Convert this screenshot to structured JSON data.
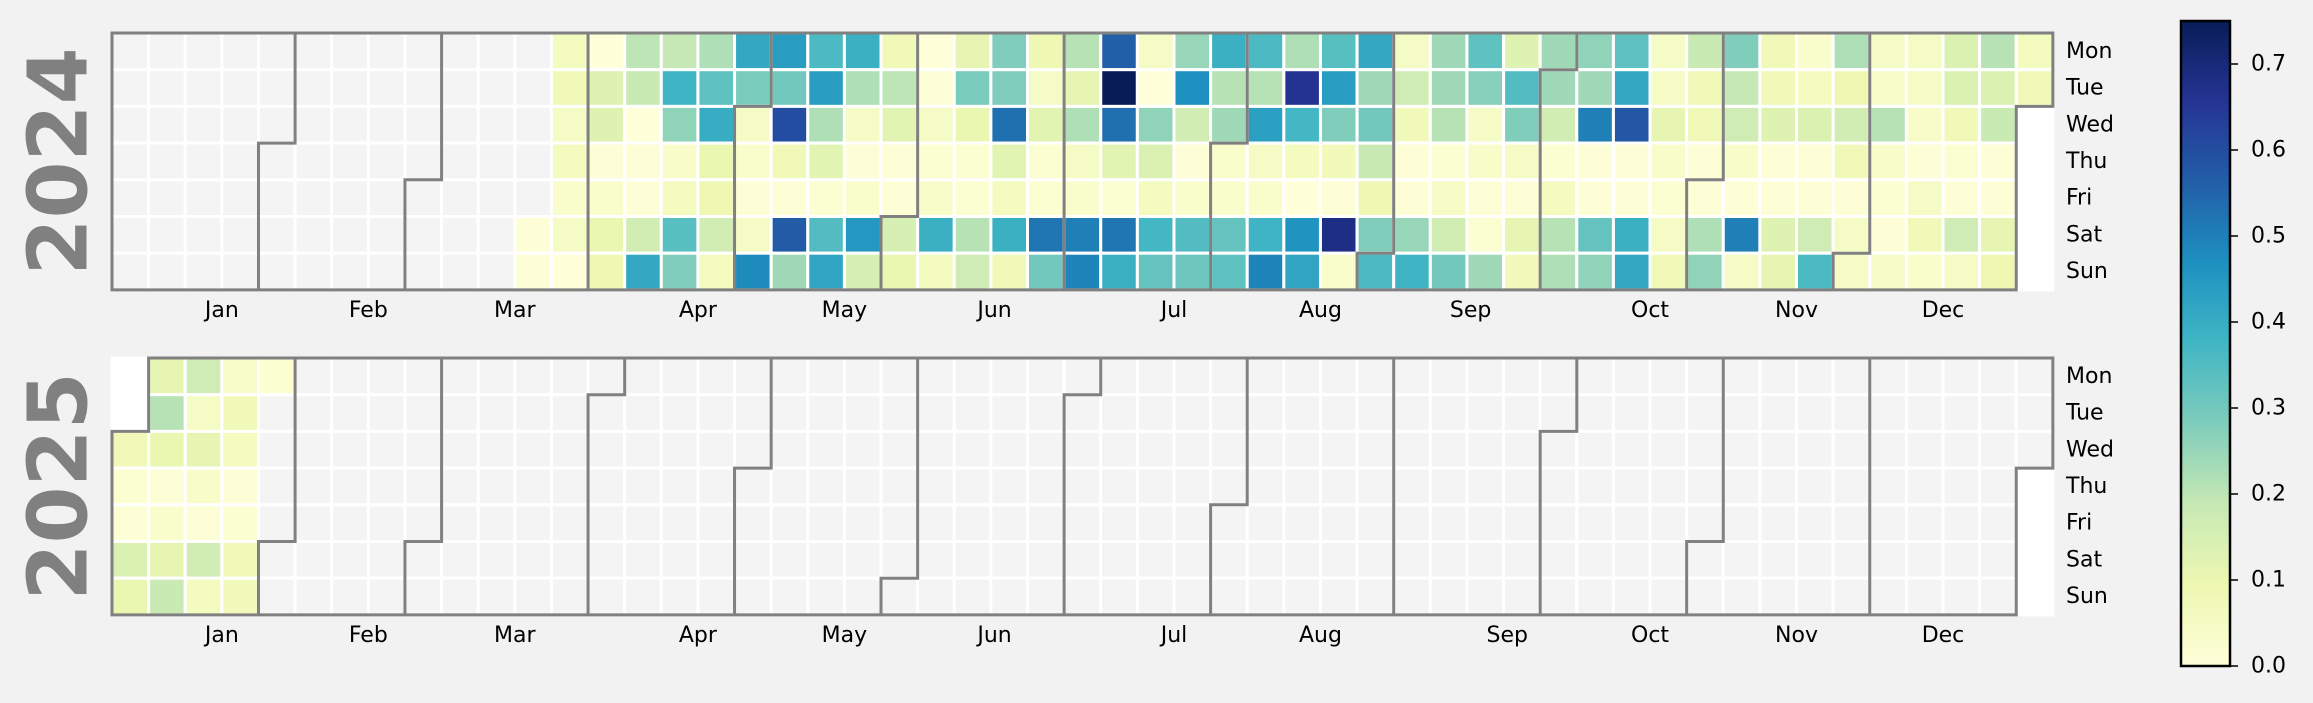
{
  "chart_data": {
    "type": "heatmap",
    "subtype": "calendar",
    "title": "",
    "colormap": "YlGnBu",
    "colormap_stops": [
      "#ffffd9",
      "#edf8b1",
      "#c7e9b4",
      "#7fcdbb",
      "#41b6c4",
      "#1d91c0",
      "#225ea8",
      "#253494",
      "#081d58"
    ],
    "vmin": 0.0,
    "vmax": 0.75,
    "empty_color": "#f4f4f4",
    "outside_color": "#ffffff",
    "outline_color": "#808080",
    "day_labels": [
      "Mon",
      "Tue",
      "Wed",
      "Thu",
      "Fri",
      "Sat",
      "Sun"
    ],
    "month_labels": [
      "Jan",
      "Feb",
      "Mar",
      "Apr",
      "May",
      "Jun",
      "Jul",
      "Aug",
      "Sep",
      "Oct",
      "Nov",
      "Dec"
    ],
    "colorbar": {
      "ticks": [
        0.0,
        0.1,
        0.2,
        0.3,
        0.4,
        0.5,
        0.6,
        0.7
      ],
      "tick_labels": [
        "0.0",
        "0.1",
        "0.2",
        "0.3",
        "0.4",
        "0.5",
        "0.6",
        "0.7"
      ]
    },
    "years": [
      {
        "year": "2024",
        "first_date": "2024-03-23",
        "daily_values": [
          0.01,
          0.01,
          0.06,
          0.08,
          0.05,
          0.06,
          0.03,
          0.05,
          0.0,
          0.0,
          0.13,
          0.13,
          0.01,
          0.03,
          0.1,
          0.09,
          0.2,
          0.18,
          0.0,
          0.01,
          0.01,
          0.16,
          0.41,
          0.19,
          0.38,
          0.26,
          0.04,
          0.06,
          0.34,
          0.28,
          0.22,
          0.33,
          0.4,
          0.1,
          0.09,
          0.16,
          0.06,
          0.41,
          0.29,
          0.05,
          0.03,
          0.01,
          0.05,
          0.48,
          0.44,
          0.3,
          0.6,
          0.08,
          0.01,
          0.57,
          0.24,
          0.36,
          0.44,
          0.22,
          0.12,
          0.02,
          0.35,
          0.42,
          0.39,
          0.22,
          0.05,
          0.01,
          0.03,
          0.45,
          0.15,
          0.08,
          0.2,
          0.12,
          0.01,
          0.01,
          0.15,
          0.1,
          0.0,
          0.01,
          0.05,
          0.02,
          0.04,
          0.39,
          0.06,
          0.11,
          0.29,
          0.1,
          0.02,
          0.02,
          0.21,
          0.17,
          0.28,
          0.28,
          0.53,
          0.12,
          0.06,
          0.39,
          0.08,
          0.09,
          0.05,
          0.12,
          0.02,
          0.02,
          0.52,
          0.3,
          0.21,
          0.11,
          0.22,
          0.05,
          0.03,
          0.5,
          0.49,
          0.56,
          0.75,
          0.53,
          0.12,
          0.02,
          0.52,
          0.39,
          0.05,
          0.0,
          0.26,
          0.14,
          0.06,
          0.37,
          0.32,
          0.25,
          0.47,
          0.16,
          0.01,
          0.03,
          0.35,
          0.31,
          0.39,
          0.21,
          0.24,
          0.03,
          0.03,
          0.32,
          0.33,
          0.36,
          0.21,
          0.43,
          0.05,
          0.03,
          0.38,
          0.49,
          0.22,
          0.66,
          0.37,
          0.06,
          0.0,
          0.46,
          0.42,
          0.34,
          0.44,
          0.28,
          0.07,
          0.01,
          0.68,
          0.03,
          0.41,
          0.24,
          0.3,
          0.18,
          0.09,
          0.28,
          0.36,
          0.05,
          0.17,
          0.07,
          0.01,
          0.01,
          0.25,
          0.38,
          0.24,
          0.24,
          0.21,
          0.02,
          0.05,
          0.16,
          0.3,
          0.33,
          0.27,
          0.05,
          0.04,
          0.01,
          0.02,
          0.24,
          0.13,
          0.35,
          0.28,
          0.05,
          0.01,
          0.11,
          0.07,
          0.24,
          0.24,
          0.16,
          0.02,
          0.06,
          0.21,
          0.22,
          0.26,
          0.24,
          0.5,
          0.01,
          0.01,
          0.32,
          0.26,
          0.33,
          0.41,
          0.58,
          0.01,
          0.01,
          0.39,
          0.41,
          0.05,
          0.05,
          0.11,
          0.04,
          0.02,
          0.05,
          0.08,
          0.18,
          0.08,
          0.08,
          0.01,
          0.01,
          0.22,
          0.26,
          0.28,
          0.19,
          0.17,
          0.04,
          0.01,
          0.5,
          0.05,
          0.08,
          0.08,
          0.13,
          0.01,
          0.01,
          0.13,
          0.11,
          0.03,
          0.06,
          0.14,
          0.01,
          0.01,
          0.17,
          0.36,
          0.22,
          0.09,
          0.16,
          0.08,
          0.01,
          0.05,
          0.05,
          0.05,
          0.04,
          0.21,
          0.04,
          0.02,
          0.01,
          0.05,
          0.05,
          0.05,
          0.04,
          0.01,
          0.05,
          0.08,
          0.03,
          0.14,
          0.14,
          0.08,
          0.02,
          0.01,
          0.17,
          0.05,
          0.21,
          0.14,
          0.18,
          0.01,
          0.01,
          0.11,
          0.09,
          0.06,
          0.08
        ]
      },
      {
        "year": "2025",
        "first_date": "2025-01-01",
        "daily_values": [
          0.08,
          0.02,
          0.01,
          0.14,
          0.1,
          0.11,
          0.21,
          0.1,
          0.01,
          0.03,
          0.11,
          0.18,
          0.17,
          0.05,
          0.11,
          0.04,
          0.01,
          0.16,
          0.06,
          0.04,
          0.08,
          0.06,
          0.01,
          0.02,
          0.08,
          0.07,
          0.02
        ]
      }
    ]
  }
}
